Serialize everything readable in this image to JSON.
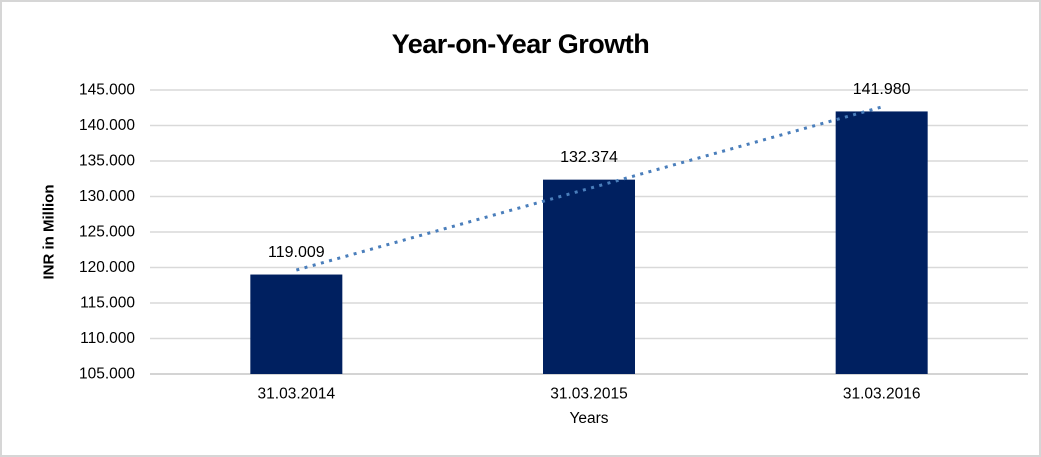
{
  "chart_data": {
    "type": "bar",
    "title": "Year-on-Year Growth",
    "xlabel": "Years",
    "ylabel": "INR in Million",
    "categories": [
      "31.03.2014",
      "31.03.2015",
      "31.03.2016"
    ],
    "values": [
      119.009,
      132.374,
      141.98
    ],
    "data_labels": [
      "119.009",
      "132.374",
      "141.980"
    ],
    "ylim": [
      105,
      145
    ],
    "ytick_step": 5,
    "ytick_labels": [
      "105.000",
      "110.000",
      "115.000",
      "120.000",
      "125.000",
      "130.000",
      "135.000",
      "140.000",
      "145.000"
    ],
    "grid": true,
    "legend": "none",
    "trendline": {
      "style": "dotted",
      "endpoint_values": [
        119.64,
        142.61
      ],
      "color": "#4a7ebb"
    },
    "colors": {
      "bar": "#002060",
      "gridline": "#d9d9d9",
      "axis_line": "#c6c6c6",
      "text": "#000000",
      "frame_border": "#d6d6d6"
    }
  }
}
